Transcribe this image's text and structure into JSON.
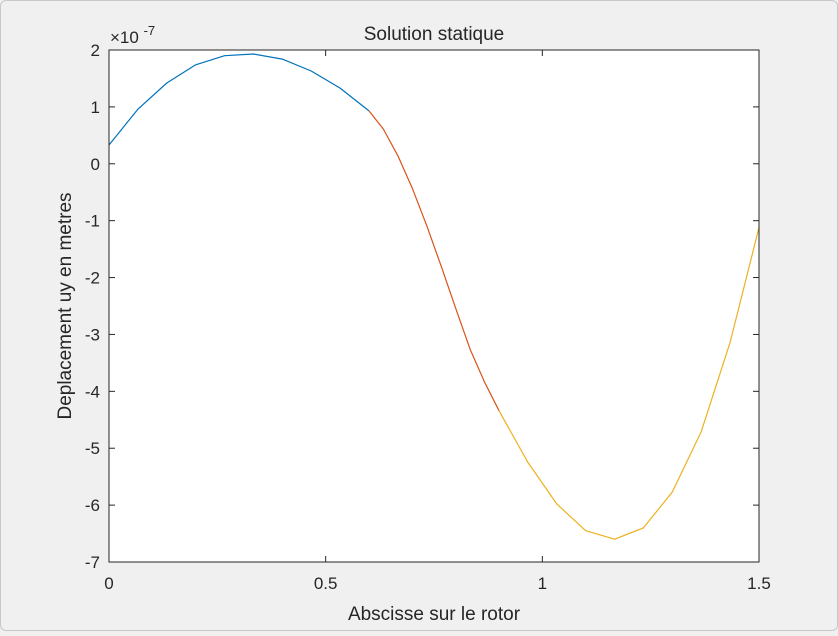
{
  "chart_data": {
    "type": "line",
    "title": "Solution statique",
    "xlabel": "Abscisse sur le rotor",
    "ylabel": "Deplacement uy en metres",
    "exponent_base": "×10",
    "exponent_power": "-7",
    "xlim": [
      0,
      1.5
    ],
    "ylim": [
      -7,
      2
    ],
    "xticks": [
      0,
      0.5,
      1,
      1.5
    ],
    "xtick_labels": [
      "0",
      "0.5",
      "1",
      "1.5"
    ],
    "yticks": [
      -7,
      -6,
      -5,
      -4,
      -3,
      -2,
      -1,
      0,
      1,
      2
    ],
    "ytick_labels": [
      "-7",
      "-6",
      "-5",
      "-4",
      "-3",
      "-2",
      "-1",
      "0",
      "1",
      "2"
    ],
    "grid": false,
    "series": [
      {
        "color": "#0072BD",
        "x": [
          0,
          0.0667,
          0.1333,
          0.2,
          0.2667,
          0.3333,
          0.4,
          0.4667,
          0.5333,
          0.6
        ],
        "y": [
          0.33,
          0.96,
          1.42,
          1.74,
          1.9,
          1.93,
          1.84,
          1.63,
          1.33,
          0.93
        ]
      },
      {
        "color": "#D95319",
        "x": [
          0.6,
          0.6333,
          0.6667,
          0.7,
          0.7333,
          0.7667,
          0.8,
          0.8333,
          0.8667,
          0.9
        ],
        "y": [
          0.93,
          0.61,
          0.14,
          -0.43,
          -1.09,
          -1.8,
          -2.54,
          -3.26,
          -3.84,
          -4.34
        ]
      },
      {
        "color": "#EDB120",
        "x": [
          0.9,
          0.9667,
          1.0333,
          1.1,
          1.1667,
          1.2333,
          1.3,
          1.3667,
          1.4333,
          1.5
        ],
        "y": [
          -4.34,
          -5.25,
          -5.98,
          -6.45,
          -6.6,
          -6.4,
          -5.77,
          -4.71,
          -3.14,
          -1.12
        ]
      }
    ]
  }
}
